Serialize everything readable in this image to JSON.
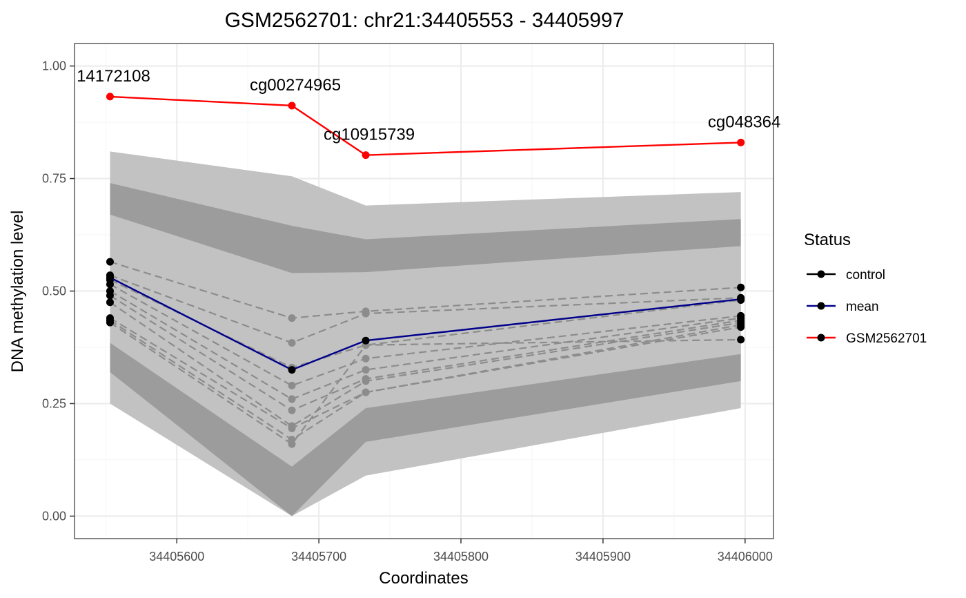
{
  "chart_data": {
    "type": "line",
    "title": "GSM2562701: chr21:34405553 - 34405997",
    "xlabel": "Coordinates",
    "ylabel": "DNA methylation level",
    "xlim": [
      34405528,
      34406020
    ],
    "ylim": [
      -0.05,
      1.05
    ],
    "x_ticks": [
      34405600,
      34405700,
      34405800,
      34405900,
      34406000
    ],
    "x_tick_labels": [
      "34405600",
      "34405700",
      "34405800",
      "34405900",
      "34406000"
    ],
    "y_ticks": [
      0,
      0.25,
      0.5,
      0.75,
      1.0
    ],
    "y_tick_labels": [
      "0.00",
      "0.25",
      "0.50",
      "0.75",
      "1.00"
    ],
    "grid": true,
    "legend_position": "right",
    "positions": [
      34405553,
      34405681,
      34405733,
      34405997
    ],
    "probe_labels": [
      "14172108",
      "cg00274965",
      "cg10915739",
      "cg048364"
    ],
    "bands": [
      {
        "kind": "outer",
        "color": "#c2c2c2",
        "lower": [
          0.25,
          0.0,
          0.09,
          0.24
        ],
        "upper": [
          0.81,
          0.755,
          0.69,
          0.72
        ]
      },
      {
        "kind": "inner",
        "color": "#9c9c9c",
        "lower": [
          0.32,
          0.0,
          0.165,
          0.3
        ],
        "upper": [
          0.74,
          0.645,
          0.615,
          0.66
        ]
      },
      {
        "kind": "center",
        "color": "#c2c2c2",
        "lower": [
          0.385,
          0.11,
          0.24,
          0.36
        ],
        "upper": [
          0.67,
          0.54,
          0.542,
          0.6
        ]
      }
    ],
    "control_series": [
      [
        0.565,
        0.44,
        0.455,
        0.508
      ],
      [
        0.535,
        0.385,
        0.45,
        0.485
      ],
      [
        0.525,
        0.33,
        0.38,
        0.48
      ],
      [
        0.515,
        0.29,
        0.35,
        0.445
      ],
      [
        0.5,
        0.26,
        0.325,
        0.44
      ],
      [
        0.49,
        0.235,
        0.305,
        0.435
      ],
      [
        0.475,
        0.2,
        0.3,
        0.43
      ],
      [
        0.44,
        0.195,
        0.275,
        0.425
      ],
      [
        0.435,
        0.17,
        0.275,
        0.42
      ],
      [
        0.43,
        0.16,
        0.38,
        0.392
      ]
    ],
    "series": [
      {
        "name": "mean",
        "color": "#00008b",
        "values": [
          0.53,
          0.325,
          0.39,
          0.482
        ]
      },
      {
        "name": "GSM2562701",
        "color": "#ff0000",
        "values": [
          0.932,
          0.912,
          0.802,
          0.83
        ]
      }
    ],
    "legend": {
      "title": "Status",
      "items": [
        {
          "label": "control",
          "color": "#000000"
        },
        {
          "label": "mean",
          "color": "#00008b"
        },
        {
          "label": "GSM2562701",
          "color": "#ff0000"
        }
      ]
    },
    "colors": {
      "control_line": "#8c8c8c",
      "control_point": "#8c8c8c",
      "control_end_point": "#000000",
      "grid_major": "#ebebeb",
      "grid_minor": "#f5f5f5",
      "panel_border": "#333333"
    }
  }
}
